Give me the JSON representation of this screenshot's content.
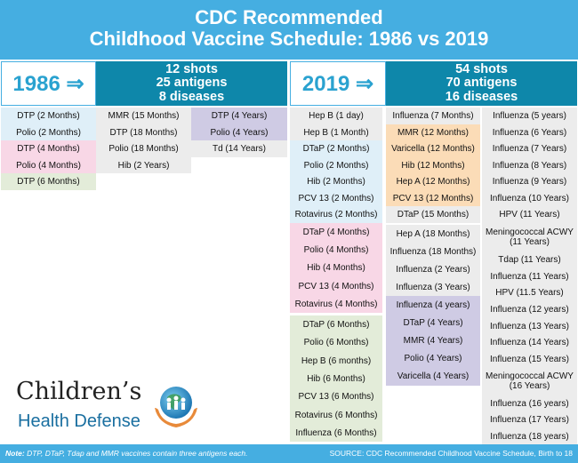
{
  "header": {
    "title_line1": "CDC Recommended",
    "title_line2": "Childhood Vaccine Schedule: 1986 vs 2019"
  },
  "y1986": {
    "year": "1986 ⇒",
    "shots": "12 shots",
    "antigens": "25 antigens",
    "diseases": "8 diseases"
  },
  "y2019": {
    "year": "2019 ⇒",
    "shots": "54 shots",
    "antigens": "70 antigens",
    "diseases": "16 diseases"
  },
  "s1986": [
    [
      "DTP (2 Months)",
      "Polio (2 Months)",
      "DTP (4 Months)",
      "Polio (4 Months)",
      "DTP (6 Months)"
    ],
    [
      "MMR (15 Months)",
      "DTP (18 Months)",
      "Polio (18 Months)",
      "Hib (2 Years)"
    ],
    [
      "DTP (4 Years)",
      "Polio (4 Years)",
      "Td (14 Years)"
    ]
  ],
  "s2019": [
    [
      "Hep B (1 day)",
      "Hep B (1 Month)",
      "DTaP (2 Months)",
      "Polio (2 Months)",
      "Hib (2 Months)",
      "PCV 13 (2 Months)",
      "Rotavirus (2 Months)",
      "DTaP (4 Months)",
      "Polio (4 Months)",
      "Hib (4 Months)",
      "PCV 13 (4 Months)",
      "Rotavirus (4 Months)",
      "DTaP (6 Months)",
      "Polio (6 Months)",
      "Hep B (6 months)",
      "Hib (6 Months)",
      "PCV 13 (6 Months)",
      "Rotavirus (6 Months)",
      "Influenza (6 Months)"
    ],
    [
      "Influenza (7 Months)",
      "MMR (12 Months)",
      "Varicella (12 Months)",
      "Hib (12 Months)",
      "Hep A (12 Months)",
      "PCV 13 (12 Months)",
      "DTaP (15 Months)",
      "Hep A (18 Months)",
      "Influenza (18 Months)",
      "Influenza (2 Years)",
      "Influenza (3 Years)",
      "Influenza (4 years)",
      "DTaP (4 Years)",
      "MMR (4 Years)",
      "Polio (4 Years)",
      "Varicella (4 Years)"
    ],
    [
      "Influenza (5 years)",
      "Influenza (6 Years)",
      "Influenza (7 Years)",
      "Influenza (8 Years)",
      "Influenza (9 Years)",
      "Influenza (10 Years)",
      "HPV (11 Years)",
      "Meningococcal ACWY",
      "(11 Years)",
      "Tdap (11 Years)",
      "Influenza (11 Years)",
      "HPV (11.5 Years)",
      "Influenza (12 years)",
      "Influenza (13 Years)",
      "Influenza (14 Years)",
      "Influenza (15 Years)",
      "Meningococcal ACWY",
      "(16 Years)",
      "Influenza (16 years)",
      "Influenza (17 Years)",
      "Influenza (18 years)"
    ]
  ],
  "logo": {
    "line1": "Children’s",
    "line2": "Health Defense"
  },
  "footer": {
    "note_label": "Note:",
    "note_text": " DTP, DTaP, Tdap and MMR vaccines contain three antigens each.",
    "source": "SOURCE: CDC Recommended Childhood Vaccine Schedule, Birth to 18"
  },
  "colors": {
    "title_bg": "#45aee1",
    "stats_bg": "#0e87aa",
    "year_text": "#2aa2d0"
  }
}
